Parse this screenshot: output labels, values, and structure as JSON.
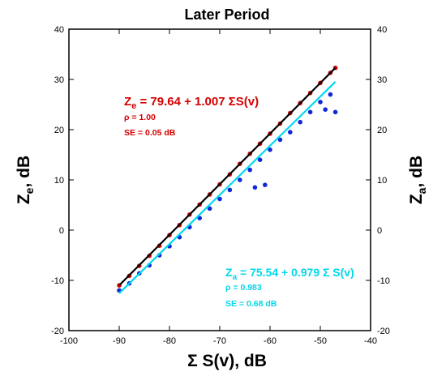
{
  "chart_data": {
    "type": "scatter",
    "title": "Later Period",
    "xlabel": "Σ S(v), dB",
    "ylabel_left": "Z_e, dB",
    "ylabel_right": "Z_a, dB",
    "xlim": [
      -100,
      -40
    ],
    "ylim": [
      -20,
      40
    ],
    "x_ticks": [
      -100,
      -90,
      -80,
      -70,
      -60,
      -50,
      -40
    ],
    "y_ticks": [
      -20,
      -10,
      0,
      10,
      20,
      30,
      40
    ],
    "grid": false,
    "colors": {
      "red": "#d40000",
      "blue": "#1028d8",
      "cyan": "#00d8f0",
      "black": "#000000"
    },
    "series": [
      {
        "name": "Z_e",
        "color": "#d40000",
        "points": [
          [
            -90,
            -11.0
          ],
          [
            -88,
            -9.1
          ],
          [
            -86,
            -7.1
          ],
          [
            -84,
            -5.1
          ],
          [
            -82,
            -3.1
          ],
          [
            -80,
            -1.0
          ],
          [
            -78,
            1.0
          ],
          [
            -76,
            3.1
          ],
          [
            -74,
            5.1
          ],
          [
            -72,
            7.1
          ],
          [
            -70,
            9.1
          ],
          [
            -68,
            11.1
          ],
          [
            -66,
            13.2
          ],
          [
            -64,
            15.2
          ],
          [
            -62,
            17.2
          ],
          [
            -60,
            19.2
          ],
          [
            -58,
            21.2
          ],
          [
            -56,
            23.3
          ],
          [
            -54,
            25.3
          ],
          [
            -52,
            27.3
          ],
          [
            -50,
            29.3
          ],
          [
            -48,
            31.3
          ],
          [
            -47,
            32.3
          ]
        ],
        "fit": {
          "intercept": 79.64,
          "slope": 1.007,
          "x_range": [
            -90,
            -47
          ]
        }
      },
      {
        "name": "Z_a",
        "color": "#1028d8",
        "points": [
          [
            -90,
            -12.0
          ],
          [
            -88,
            -10.6
          ],
          [
            -86,
            -8.6
          ],
          [
            -84,
            -7.0
          ],
          [
            -82,
            -5.0
          ],
          [
            -80,
            -3.2
          ],
          [
            -78,
            -1.4
          ],
          [
            -76,
            0.6
          ],
          [
            -74,
            2.4
          ],
          [
            -72,
            4.3
          ],
          [
            -70,
            6.2
          ],
          [
            -68,
            8.0
          ],
          [
            -66,
            10.0
          ],
          [
            -64,
            12.0
          ],
          [
            -63,
            8.5
          ],
          [
            -62,
            14.0
          ],
          [
            -61,
            9.0
          ],
          [
            -60,
            16.0
          ],
          [
            -58,
            18.0
          ],
          [
            -56,
            19.5
          ],
          [
            -54,
            21.5
          ],
          [
            -52,
            23.5
          ],
          [
            -50,
            25.5
          ],
          [
            -49,
            24.0
          ],
          [
            -48,
            27.0
          ],
          [
            -47,
            23.5
          ]
        ],
        "fit": {
          "intercept": 75.54,
          "slope": 0.979,
          "x_range": [
            -90,
            -47
          ]
        }
      }
    ]
  },
  "annotations": {
    "ze_eq_main": "Z",
    "ze_eq_sub": "e",
    "ze_eq_rest": " = 79.64 + 1.007 ΣS(v)",
    "ze_rho": "ρ = 1.00",
    "ze_se": "SE = 0.05 dB",
    "za_eq_main": "Z",
    "za_eq_sub": "a",
    "za_eq_rest": " = 75.54 + 0.979 Σ S(v)",
    "za_rho": "ρ = 0.983",
    "za_se": "SE = 0.68 dB"
  },
  "axis_labels": {
    "left_main": "Z",
    "left_sub": "e",
    "left_rest": ", dB",
    "right_main": "Z",
    "right_sub": "a",
    "right_rest": ", dB",
    "bottom": "Σ S(v), dB"
  }
}
